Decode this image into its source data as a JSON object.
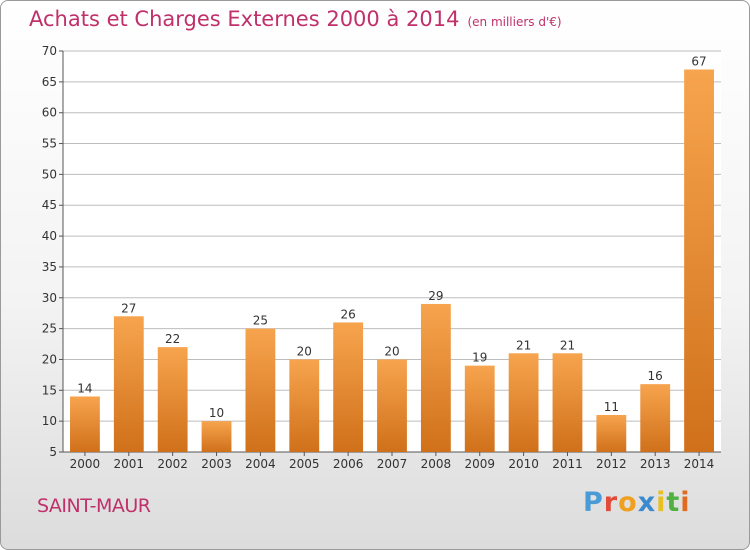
{
  "title": "Achats et Charges Externes 2000 à 2014",
  "unit_note": "(en milliers d'€)",
  "location": "SAINT-MAUR",
  "logo": {
    "text": "Proxiti",
    "letter_colors": [
      "#4a9ad8",
      "#e24a3a",
      "#f0a020",
      "#3a8ad0",
      "#e8c020",
      "#50b040",
      "#e06a20"
    ]
  },
  "colors": {
    "bar_light": "#f7a44e",
    "bar_dark": "#d0701a",
    "title": "#c0306a",
    "grid": "#bdbdbd"
  },
  "chart_data": {
    "type": "bar",
    "title": "Achats et Charges Externes 2000 à 2014",
    "categories": [
      "2000",
      "2001",
      "2002",
      "2003",
      "2004",
      "2005",
      "2006",
      "2007",
      "2008",
      "2009",
      "2010",
      "2011",
      "2012",
      "2013",
      "2014"
    ],
    "values": [
      14,
      27,
      22,
      10,
      25,
      20,
      26,
      20,
      29,
      19,
      21,
      21,
      11,
      16,
      67
    ],
    "ylim": [
      5,
      70
    ],
    "yticks": [
      5,
      10,
      15,
      20,
      25,
      30,
      35,
      40,
      45,
      50,
      55,
      60,
      65,
      70
    ],
    "grid": true,
    "legend": "none"
  }
}
